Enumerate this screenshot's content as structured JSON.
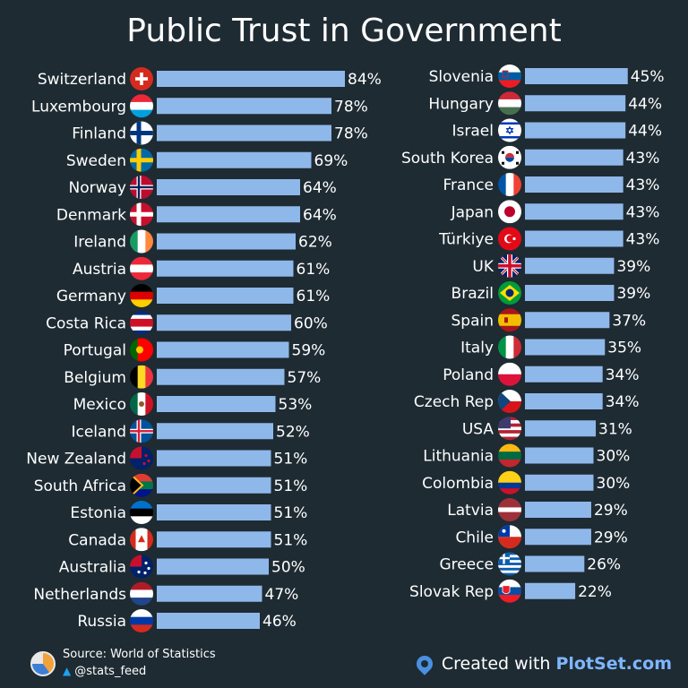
{
  "title": "Public Trust in Government",
  "colors": {
    "bar": "#8fb8ea",
    "background": "#1e2b33",
    "text": "#ffffff"
  },
  "footer": {
    "source": "Source: World of Statistics",
    "handle": "@stats_feed",
    "created_prefix": "Created with",
    "created_brand": "PlotSet.com"
  },
  "chart_data": {
    "type": "bar",
    "orientation": "horizontal",
    "title": "Public Trust in Government",
    "value_suffix": "%",
    "ylim": [
      0,
      100
    ],
    "columns": [
      {
        "categories": [
          "Switzerland",
          "Luxembourg",
          "Finland",
          "Sweden",
          "Norway",
          "Denmark",
          "Ireland",
          "Austria",
          "Germany",
          "Costa Rica",
          "Portugal",
          "Belgium",
          "Mexico",
          "Iceland",
          "New Zealand",
          "South Africa",
          "Estonia",
          "Canada",
          "Australia",
          "Netherlands",
          "Russia"
        ],
        "values": [
          84,
          78,
          78,
          69,
          64,
          64,
          62,
          61,
          61,
          60,
          59,
          57,
          53,
          52,
          51,
          51,
          51,
          51,
          50,
          47,
          46
        ]
      },
      {
        "categories": [
          "Slovenia",
          "Hungary",
          "Israel",
          "South Korea",
          "France",
          "Japan",
          "Türkiye",
          "UK",
          "Brazil",
          "Spain",
          "Italy",
          "Poland",
          "Czech Rep",
          "USA",
          "Lithuania",
          "Colombia",
          "Latvia",
          "Chile",
          "Greece",
          "Slovak Rep"
        ],
        "values": [
          45,
          44,
          44,
          43,
          43,
          43,
          43,
          39,
          39,
          37,
          35,
          34,
          34,
          31,
          30,
          30,
          29,
          29,
          26,
          22
        ]
      }
    ]
  }
}
